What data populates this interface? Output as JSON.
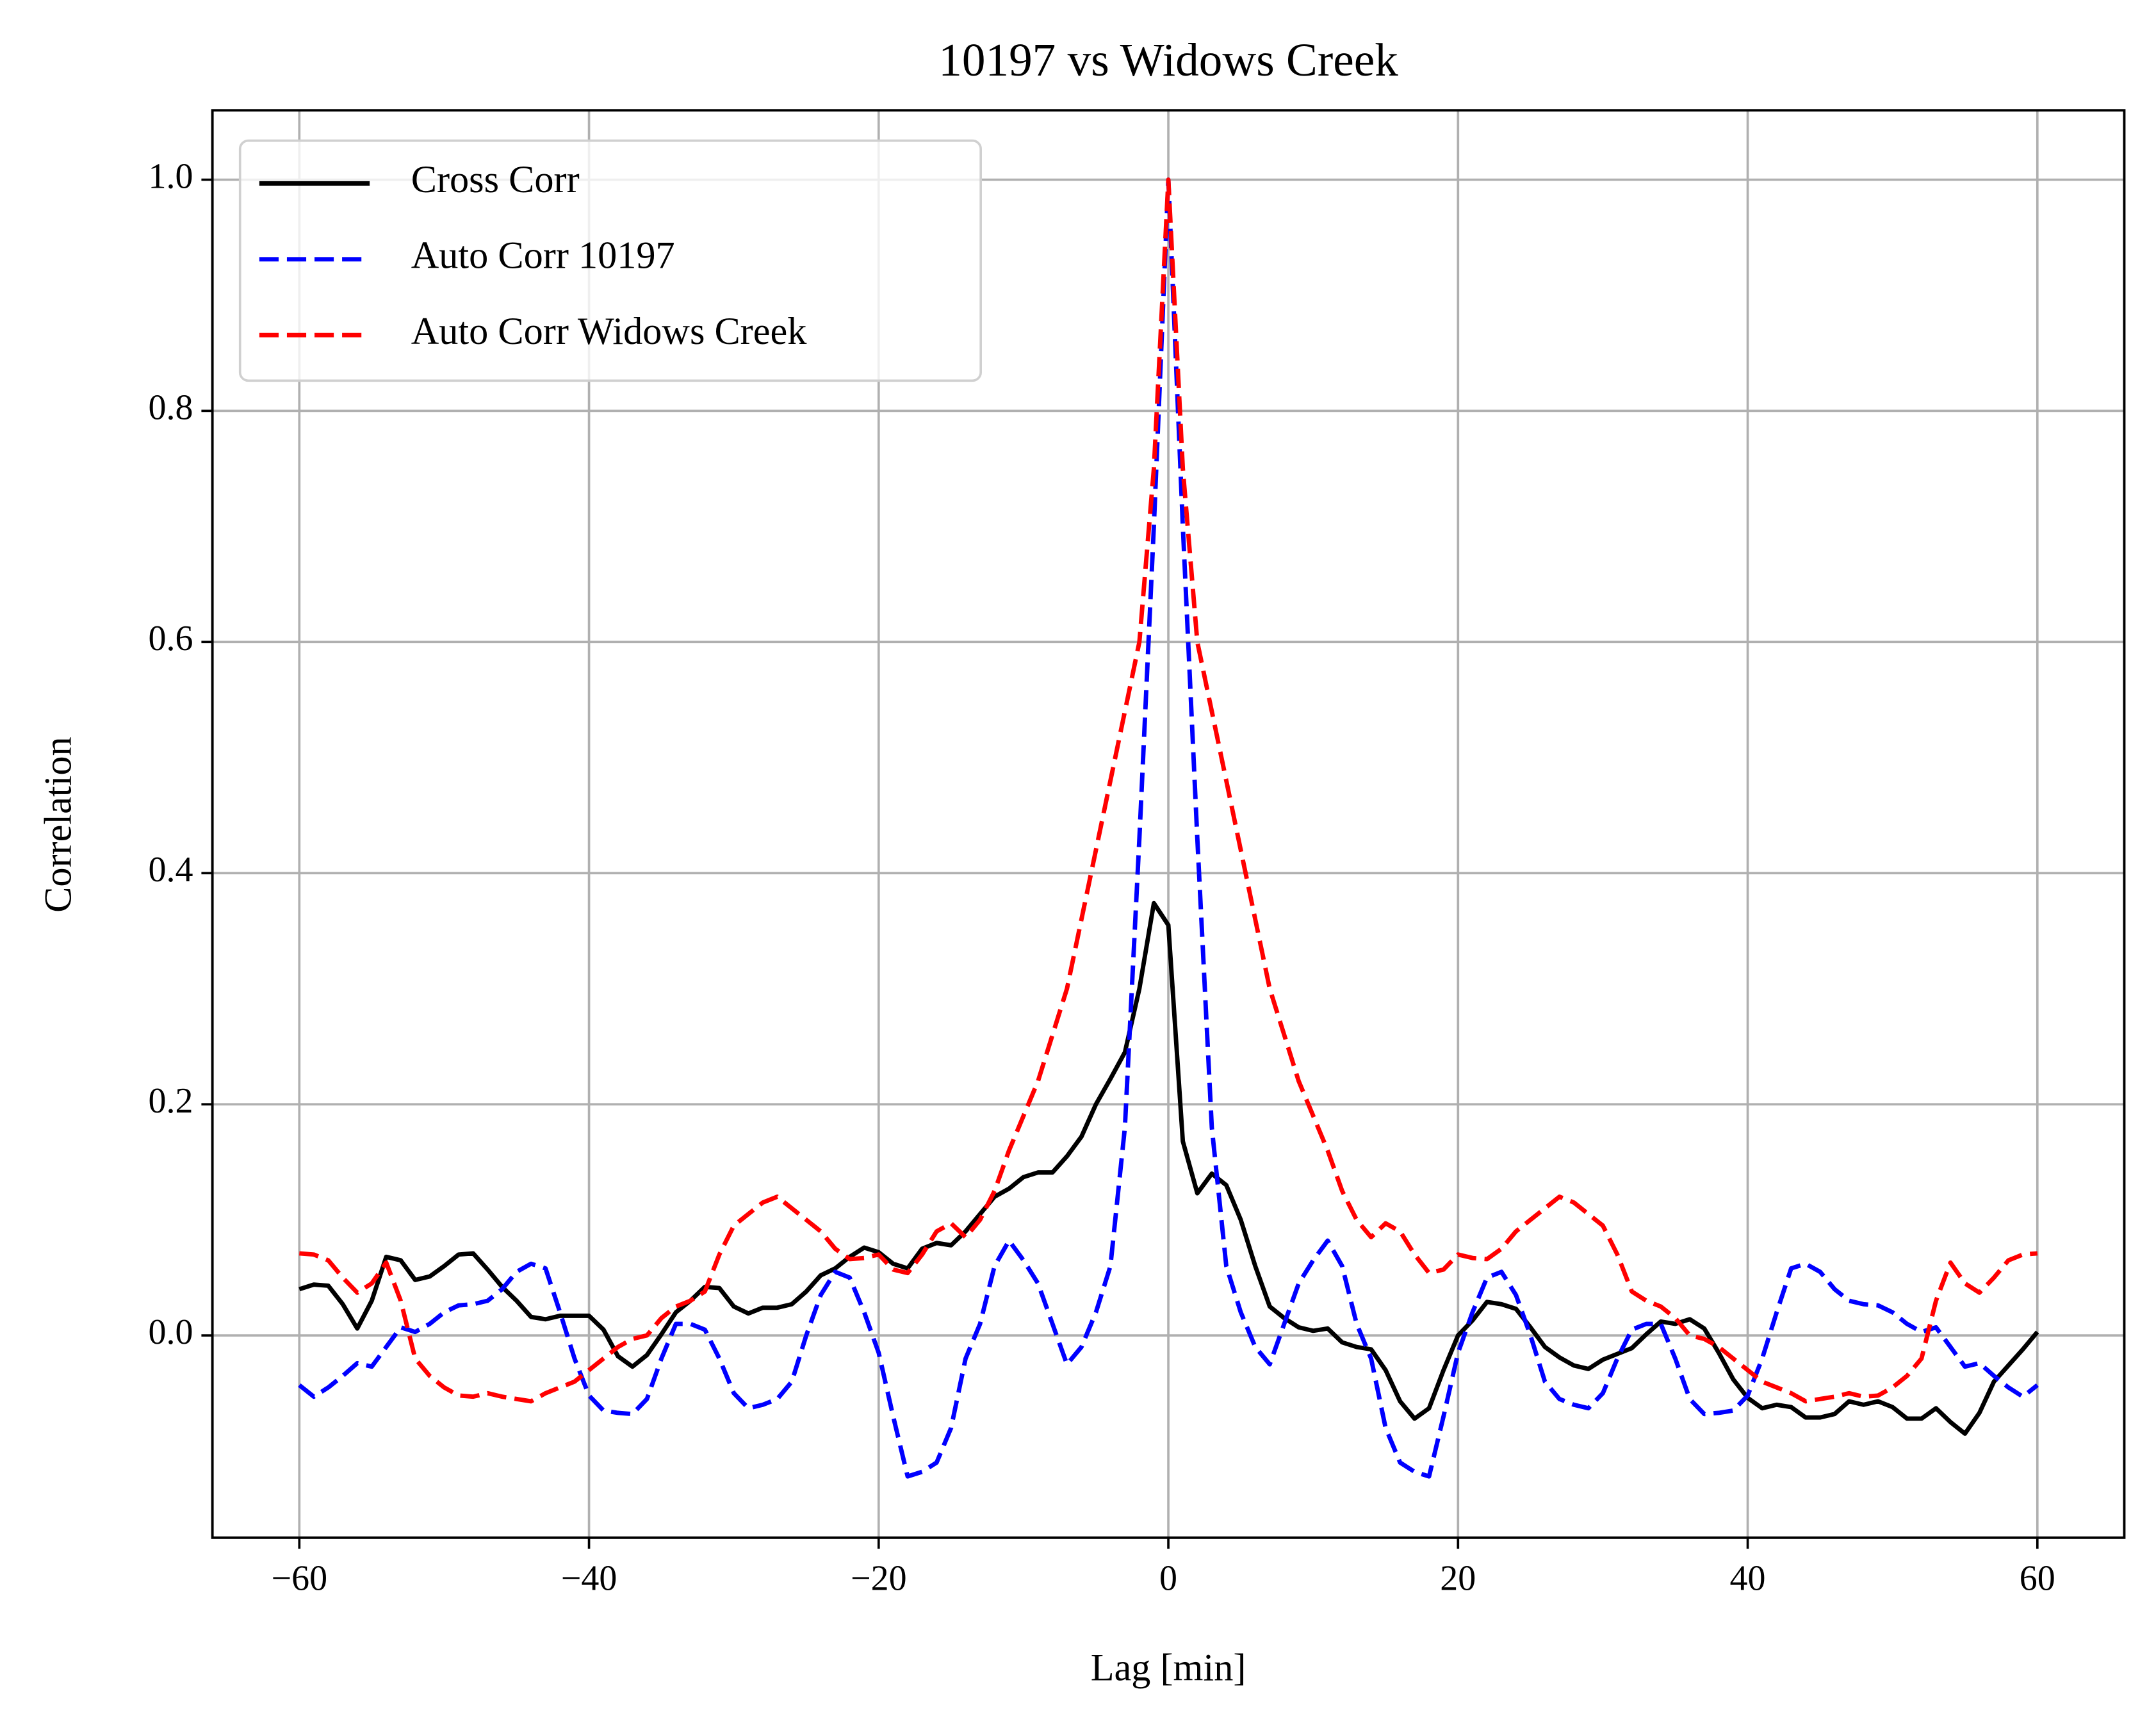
{
  "chart_data": {
    "type": "line",
    "title": "10197 vs Widows Creek",
    "xlabel": "Lag [min]",
    "ylabel": "Correlation",
    "x": [
      -60,
      -59,
      -58,
      -57,
      -56,
      -55,
      -54,
      -53,
      -52,
      -51,
      -50,
      -49,
      -48,
      -47,
      -46,
      -45,
      -44,
      -43,
      -42,
      -41,
      -40,
      -39,
      -38,
      -37,
      -36,
      -35,
      -34,
      -33,
      -32,
      -31,
      -30,
      -29,
      -28,
      -27,
      -26,
      -25,
      -24,
      -23,
      -22,
      -21,
      -20,
      -19,
      -18,
      -17,
      -16,
      -15,
      -14,
      -13,
      -12,
      -11,
      -10,
      -9,
      -8,
      -7,
      -6,
      -5,
      -4,
      -3,
      -2,
      -1,
      0,
      1,
      2,
      3,
      4,
      5,
      6,
      7,
      8,
      9,
      10,
      11,
      12,
      13,
      14,
      15,
      16,
      17,
      18,
      19,
      20,
      21,
      22,
      23,
      24,
      25,
      26,
      27,
      28,
      29,
      30,
      31,
      32,
      33,
      34,
      35,
      36,
      37,
      38,
      39,
      40,
      41,
      42,
      43,
      44,
      45,
      46,
      47,
      48,
      49,
      50,
      51,
      52,
      53,
      54,
      55,
      56,
      57,
      58,
      59,
      60
    ],
    "series": [
      {
        "name": "Cross Corr",
        "color": "#000000",
        "linestyle": "solid",
        "values": [
          0.04,
          0.044,
          0.043,
          0.027,
          0.006,
          0.03,
          0.068,
          0.065,
          0.048,
          0.051,
          0.06,
          0.07,
          0.071,
          0.057,
          0.042,
          0.03,
          0.016,
          0.014,
          0.017,
          0.017,
          0.017,
          0.005,
          -0.018,
          -0.027,
          -0.017,
          0.001,
          0.02,
          0.03,
          0.042,
          0.041,
          0.025,
          0.019,
          0.024,
          0.024,
          0.027,
          0.038,
          0.052,
          0.058,
          0.068,
          0.076,
          0.072,
          0.062,
          0.058,
          0.075,
          0.08,
          0.078,
          0.09,
          0.105,
          0.12,
          0.127,
          0.137,
          0.141,
          0.141,
          0.155,
          0.172,
          0.2,
          0.222,
          0.245,
          0.3,
          0.374,
          0.355,
          0.168,
          0.123,
          0.14,
          0.13,
          0.1,
          0.06,
          0.025,
          0.015,
          0.007,
          0.004,
          0.006,
          -0.006,
          -0.01,
          -0.012,
          -0.03,
          -0.057,
          -0.072,
          -0.063,
          -0.03,
          0.0,
          0.013,
          0.029,
          0.027,
          0.023,
          0.007,
          -0.01,
          -0.019,
          -0.026,
          -0.029,
          -0.021,
          -0.016,
          -0.011,
          0.001,
          0.012,
          0.01,
          0.014,
          0.006,
          -0.015,
          -0.038,
          -0.054,
          -0.063,
          -0.06,
          -0.062,
          -0.071,
          -0.071,
          -0.068,
          -0.057,
          -0.06,
          -0.057,
          -0.062,
          -0.072,
          -0.072,
          -0.063,
          -0.075,
          -0.085,
          -0.067,
          -0.04,
          -0.026,
          -0.012,
          0.003
        ]
      },
      {
        "name": "Auto Corr 10197",
        "color": "#0000ff",
        "linestyle": "dashed",
        "values": [
          -0.043,
          -0.053,
          -0.045,
          -0.035,
          -0.024,
          -0.027,
          -0.01,
          0.007,
          0.003,
          0.01,
          0.02,
          0.026,
          0.027,
          0.03,
          0.04,
          0.055,
          0.062,
          0.058,
          0.02,
          -0.02,
          -0.052,
          -0.065,
          -0.067,
          -0.068,
          -0.055,
          -0.02,
          0.01,
          0.01,
          0.005,
          -0.02,
          -0.05,
          -0.063,
          -0.06,
          -0.055,
          -0.04,
          0.0,
          0.035,
          0.055,
          0.05,
          0.02,
          -0.015,
          -0.07,
          -0.122,
          -0.118,
          -0.11,
          -0.08,
          -0.02,
          0.01,
          0.06,
          0.082,
          0.065,
          0.045,
          0.01,
          -0.025,
          -0.01,
          0.02,
          0.06,
          0.18,
          0.43,
          0.7,
          1.0,
          0.7,
          0.43,
          0.18,
          0.06,
          0.02,
          -0.01,
          -0.025,
          0.01,
          0.045,
          0.065,
          0.082,
          0.06,
          0.01,
          -0.02,
          -0.08,
          -0.11,
          -0.118,
          -0.122,
          -0.07,
          -0.015,
          0.02,
          0.05,
          0.055,
          0.035,
          0.0,
          -0.04,
          -0.055,
          -0.06,
          -0.063,
          -0.05,
          -0.02,
          0.005,
          0.01,
          0.01,
          -0.02,
          -0.055,
          -0.068,
          -0.067,
          -0.065,
          -0.052,
          -0.02,
          0.02,
          0.058,
          0.062,
          0.055,
          0.04,
          0.03,
          0.027,
          0.026,
          0.02,
          0.01,
          0.003,
          0.007,
          -0.01,
          -0.027,
          -0.024,
          -0.035,
          -0.045,
          -0.053,
          -0.043
        ]
      },
      {
        "name": "Auto Corr Widows Creek",
        "color": "#ff0000",
        "linestyle": "dashed",
        "values": [
          0.071,
          0.07,
          0.065,
          0.05,
          0.037,
          0.045,
          0.063,
          0.03,
          -0.02,
          -0.035,
          -0.045,
          -0.052,
          -0.053,
          -0.05,
          -0.053,
          -0.055,
          -0.057,
          -0.05,
          -0.045,
          -0.04,
          -0.03,
          -0.02,
          -0.01,
          -0.003,
          0.0,
          0.015,
          0.025,
          0.03,
          0.038,
          0.07,
          0.095,
          0.105,
          0.115,
          0.12,
          0.11,
          0.1,
          0.09,
          0.075,
          0.066,
          0.067,
          0.07,
          0.057,
          0.054,
          0.07,
          0.09,
          0.097,
          0.085,
          0.1,
          0.125,
          0.16,
          0.19,
          0.22,
          0.26,
          0.3,
          0.36,
          0.42,
          0.48,
          0.54,
          0.6,
          0.75,
          1.0,
          0.75,
          0.6,
          0.54,
          0.48,
          0.42,
          0.36,
          0.3,
          0.26,
          0.22,
          0.19,
          0.16,
          0.125,
          0.1,
          0.085,
          0.097,
          0.09,
          0.07,
          0.054,
          0.057,
          0.07,
          0.067,
          0.066,
          0.075,
          0.09,
          0.1,
          0.11,
          0.12,
          0.115,
          0.105,
          0.095,
          0.07,
          0.038,
          0.03,
          0.025,
          0.015,
          0.0,
          -0.003,
          -0.01,
          -0.02,
          -0.03,
          -0.04,
          -0.045,
          -0.05,
          -0.057,
          -0.055,
          -0.053,
          -0.05,
          -0.053,
          -0.052,
          -0.045,
          -0.035,
          -0.02,
          0.03,
          0.063,
          0.045,
          0.037,
          0.05,
          0.065,
          0.07,
          0.071
        ]
      }
    ],
    "xlim": [
      -66,
      66
    ],
    "ylim": [
      -0.175,
      1.06
    ],
    "xticks": [
      {
        "value": -60,
        "label": "−60"
      },
      {
        "value": -40,
        "label": "−40"
      },
      {
        "value": -20,
        "label": "−20"
      },
      0,
      20,
      40,
      60
    ],
    "yticks": [
      {
        "value": 0,
        "label": "0.0"
      },
      0.2,
      0.4,
      0.6,
      0.8,
      {
        "value": 1,
        "label": "1.0"
      }
    ],
    "grid": true,
    "legend": "upper left"
  }
}
